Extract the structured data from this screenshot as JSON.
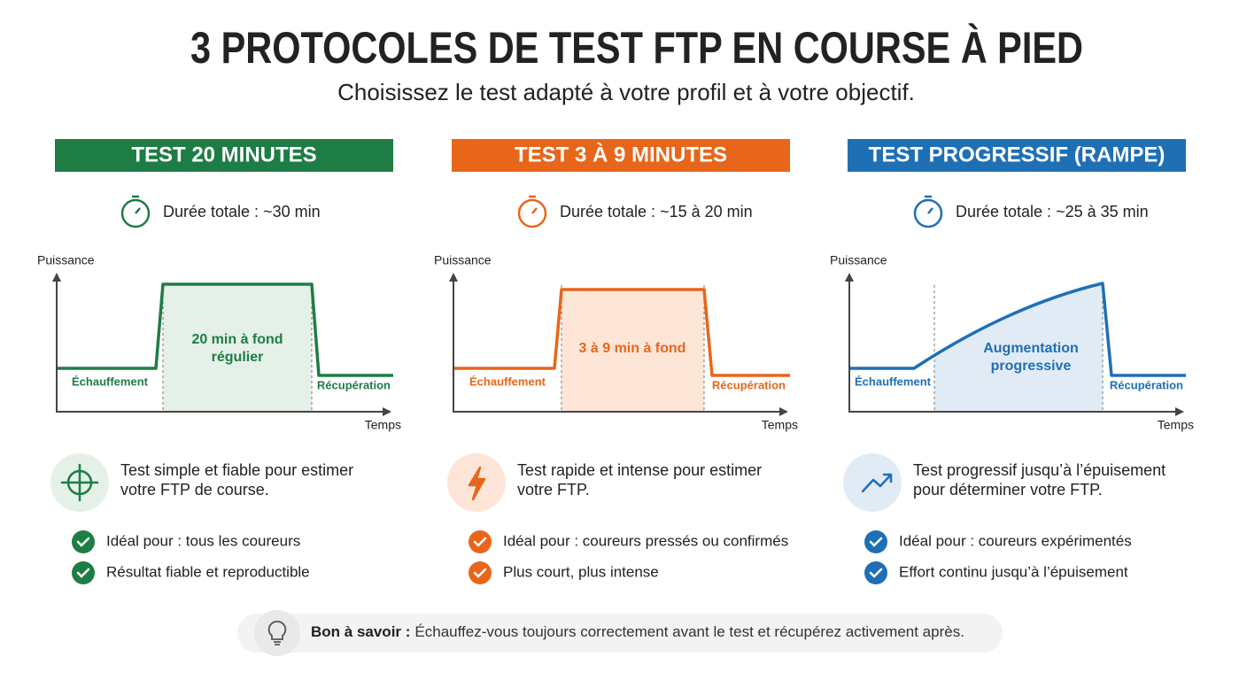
{
  "header": {
    "title": "3 PROTOCOLES DE TEST FTP EN COURSE À PIED",
    "subtitle": "Choisissez le test adapté à votre profil et à votre objectif."
  },
  "columns": [
    {
      "title": "TEST 20 MINUTES",
      "duration": "Durée totale : ~30 min",
      "chart": {
        "y_label": "Puissance",
        "x_label": "Temps",
        "warmup": "Échauffement",
        "main": [
          "20 min à fond",
          "régulier"
        ],
        "recovery": "Récupération"
      },
      "description": [
        "Test simple et fiable pour estimer",
        "votre FTP de course."
      ],
      "points": [
        "Idéal pour : tous les coureurs",
        "Résultat fiable et reproductible"
      ]
    },
    {
      "title": "TEST 3 À 9 MINUTES",
      "duration": "Durée totale : ~15 à 20 min",
      "chart": {
        "y_label": "Puissance",
        "x_label": "Temps",
        "warmup": "Échauffement",
        "main": [
          "3 à 9 min à fond"
        ],
        "recovery": "Récupération"
      },
      "description": [
        "Test rapide et intense pour estimer",
        "votre FTP."
      ],
      "points": [
        "Idéal pour : coureurs pressés ou confirmés",
        "Plus court, plus intense"
      ]
    },
    {
      "title": "TEST PROGRESSIF (RAMPE)",
      "duration": "Durée totale : ~25 à 35 min",
      "chart": {
        "y_label": "Puissance",
        "x_label": "Temps",
        "warmup": "Échauffement",
        "main": [
          "Augmentation",
          "progressive"
        ],
        "recovery": "Récupération"
      },
      "description": [
        "Test progressif jusqu’à l’épuisement",
        "pour déterminer votre FTP."
      ],
      "points": [
        "Idéal pour : coureurs expérimentés",
        "Effort continu jusqu’à l’épuisement"
      ]
    }
  ],
  "footer": {
    "label": "Bon à savoir :",
    "text": "Échauffez-vous toujours correctement avant le test et récupérez activement après."
  }
}
